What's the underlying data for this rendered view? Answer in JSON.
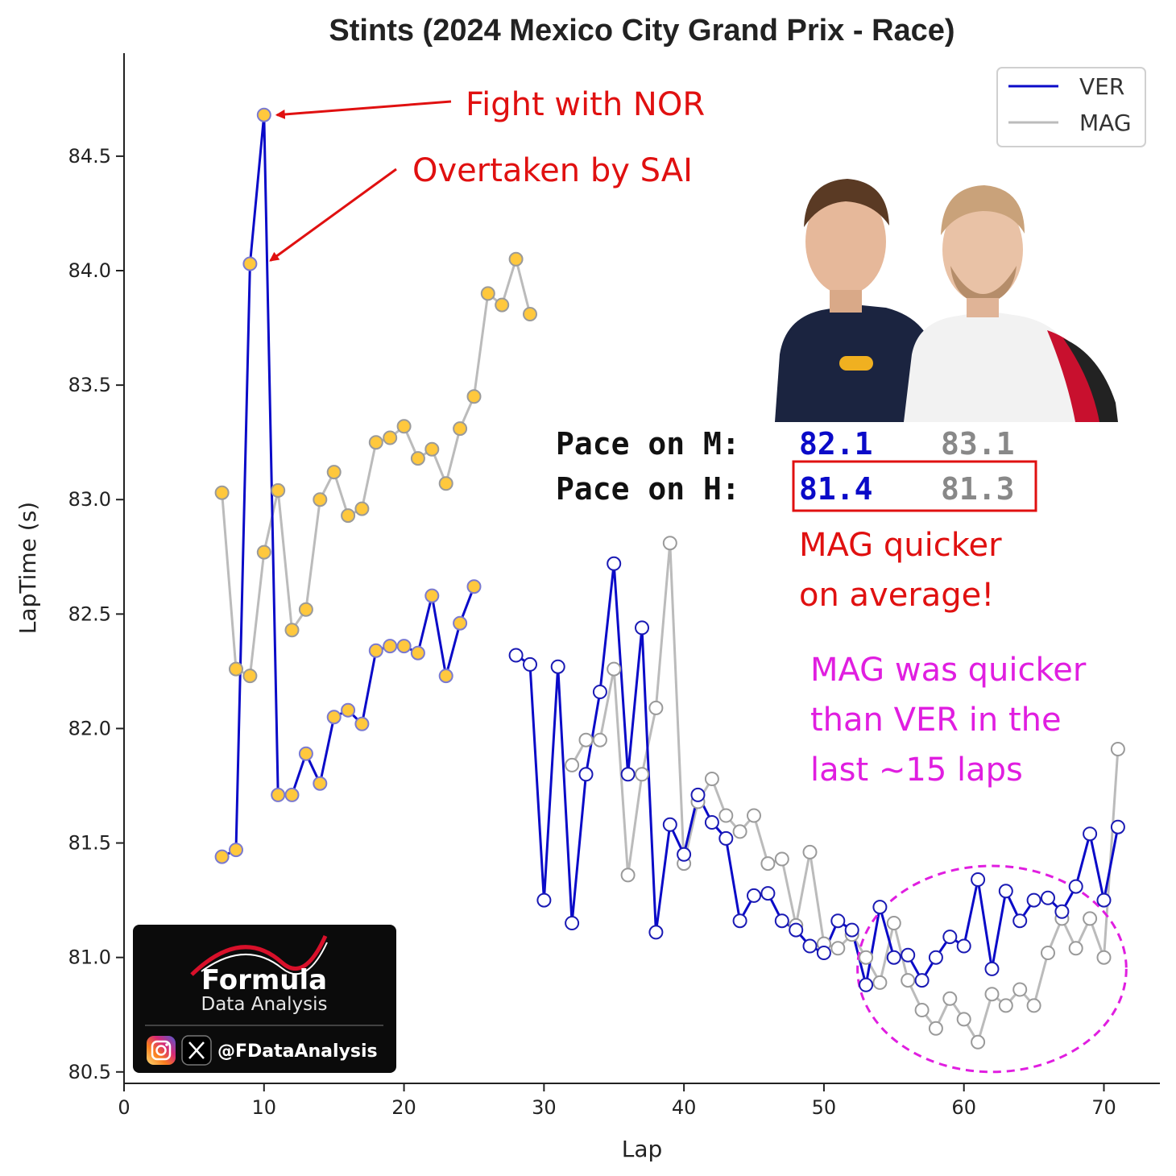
{
  "chart_data": {
    "type": "line",
    "title": "Stints (2024 Mexico City Grand Prix - Race)",
    "xlabel": "Lap",
    "ylabel": "LapTime (s)",
    "xlim": [
      0,
      74
    ],
    "ylim": [
      80.45,
      84.95
    ],
    "xticks": [
      "0",
      "10",
      "20",
      "30",
      "40",
      "50",
      "60",
      "70"
    ],
    "yticks": [
      "80.5",
      "81.0",
      "81.5",
      "82.0",
      "82.5",
      "83.0",
      "83.5",
      "84.0",
      "84.5"
    ],
    "legend_position": "top-right",
    "compound_marker_colors": {
      "medium": "#ffc83d",
      "hard": "#ffffff"
    },
    "series": [
      {
        "name": "VER",
        "color": "#0a0ac8",
        "stints": [
          {
            "compound": "medium",
            "x": [
              7,
              8,
              9,
              10,
              11,
              12,
              13,
              14,
              15,
              16,
              17,
              18,
              19,
              20,
              21,
              22,
              23,
              24,
              25
            ],
            "y": [
              81.44,
              81.47,
              84.03,
              84.68,
              81.71,
              81.71,
              81.89,
              81.76,
              82.05,
              82.08,
              82.02,
              82.34,
              82.36,
              82.36,
              82.33,
              82.58,
              82.23,
              82.46,
              82.62
            ]
          },
          {
            "compound": "hard",
            "x": [
              28,
              29,
              30,
              31,
              32,
              33,
              34,
              35,
              36,
              37,
              38,
              39,
              40,
              41,
              42,
              43,
              44,
              45,
              46,
              47,
              48,
              49,
              50,
              51,
              52,
              53,
              54,
              55,
              56,
              57,
              58,
              59,
              60,
              61,
              62,
              63,
              64,
              65,
              66,
              67,
              68,
              69,
              70,
              71
            ],
            "y": [
              82.32,
              82.28,
              81.25,
              82.27,
              81.15,
              81.8,
              82.16,
              82.72,
              81.8,
              82.44,
              81.11,
              81.58,
              81.45,
              81.71,
              81.59,
              81.52,
              81.16,
              81.27,
              81.28,
              81.16,
              81.12,
              81.05,
              81.02,
              81.16,
              81.12,
              80.88,
              81.22,
              81.0,
              81.01,
              80.9,
              81.0,
              81.09,
              81.05,
              81.34,
              80.95,
              81.29,
              81.16,
              81.25,
              81.26,
              81.2,
              81.31,
              81.54,
              81.25,
              81.57
            ]
          }
        ]
      },
      {
        "name": "MAG",
        "color": "#bbbbbb",
        "stints": [
          {
            "compound": "medium",
            "x": [
              7,
              8,
              9,
              10,
              11,
              12,
              13,
              14,
              15,
              16,
              17,
              18,
              19,
              20,
              21,
              22,
              23,
              24,
              25,
              26,
              27,
              28,
              29
            ],
            "y": [
              83.03,
              82.26,
              82.23,
              82.77,
              83.04,
              82.43,
              82.52,
              83.0,
              83.12,
              82.93,
              82.96,
              83.25,
              83.27,
              83.32,
              83.18,
              83.22,
              83.07,
              83.31,
              83.45,
              83.9,
              83.85,
              84.05,
              83.81
            ]
          },
          {
            "compound": "hard",
            "x": [
              32,
              33,
              34,
              35,
              36,
              37,
              38,
              39,
              40,
              41,
              42,
              43,
              44,
              45,
              46,
              47,
              48,
              49,
              50,
              51,
              52,
              53,
              54,
              55,
              56,
              57,
              58,
              59,
              60,
              61,
              62,
              63,
              64,
              65,
              66,
              67,
              68,
              69,
              70,
              71
            ],
            "y": [
              81.84,
              81.95,
              81.95,
              82.26,
              81.36,
              81.8,
              82.09,
              82.81,
              81.41,
              81.68,
              81.78,
              81.62,
              81.55,
              81.62,
              81.41,
              81.43,
              81.14,
              81.46,
              81.06,
              81.04,
              81.1,
              81.0,
              80.89,
              81.15,
              80.9,
              80.77,
              80.69,
              80.82,
              80.73,
              80.63,
              80.84,
              80.79,
              80.86,
              80.79,
              81.02,
              81.17,
              81.04,
              81.17,
              81.0,
              81.91
            ]
          }
        ]
      }
    ],
    "annotations": [
      {
        "text": "Fight with NOR",
        "points_to": {
          "x": 10,
          "y": 84.68
        }
      },
      {
        "text": "Overtaken by SAI",
        "points_to": {
          "x": 10,
          "y": 84.03
        }
      }
    ],
    "highlight_ellipse": {
      "color": "#e01ee0",
      "x_center": 62,
      "y_center": 80.95,
      "x_radius": 9.6,
      "y_radius": 0.45
    },
    "pace_table": {
      "rows": [
        {
          "label": "Pace on M:",
          "ver": "82.1",
          "mag": "83.1"
        },
        {
          "label": "Pace on H:",
          "ver": "81.4",
          "mag": "81.3"
        }
      ],
      "highlight_row": 1
    },
    "note_red": [
      "MAG quicker",
      "on average!"
    ],
    "note_magenta": [
      "MAG was quicker",
      "than VER  in the",
      "last ~15 laps"
    ]
  },
  "branding": {
    "name_big": "Formula",
    "name_small": "Data Analysis",
    "handle": "@FDataAnalysis",
    "icons": [
      "instagram-icon",
      "x-icon"
    ]
  },
  "photo": {
    "subjects": [
      "VER driver portrait",
      "MAG driver portrait"
    ]
  }
}
